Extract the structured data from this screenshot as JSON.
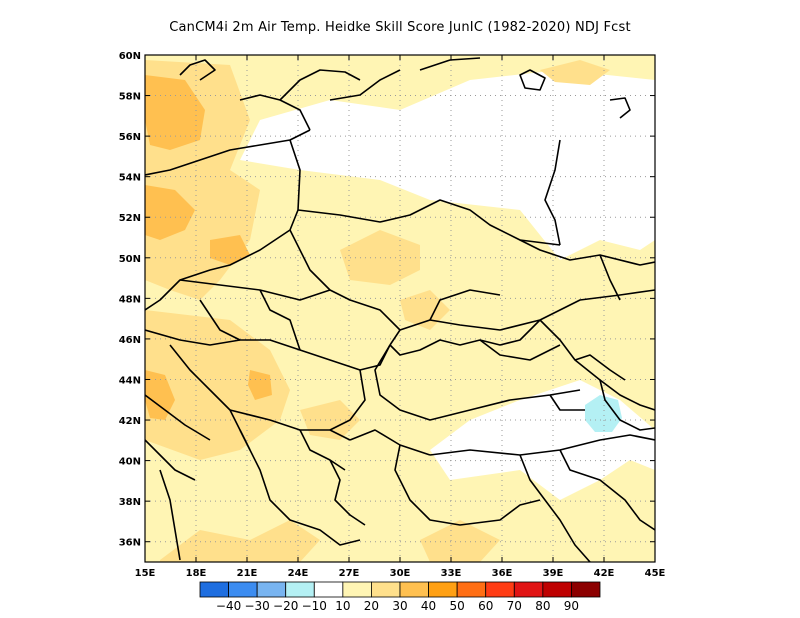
{
  "title": "CanCM4i  2m Air Temp. Heidke Skill Score JunIC (1982-2020) NDJ Fcst",
  "map": {
    "lon_range": [
      15,
      45
    ],
    "lat_range": [
      35,
      60
    ],
    "lon_ticks": [
      "15E",
      "18E",
      "21E",
      "24E",
      "27E",
      "30E",
      "33E",
      "36E",
      "39E",
      "42E",
      "45E"
    ],
    "lat_ticks": [
      "60N",
      "58N",
      "56N",
      "54N",
      "52N",
      "50N",
      "48N",
      "46N",
      "44N",
      "42N",
      "40N",
      "38N",
      "36N"
    ],
    "grid": "dotted"
  },
  "colorbar": {
    "labels": [
      "-40",
      "-30",
      "-20",
      "-10",
      "10",
      "20",
      "30",
      "40",
      "50",
      "60",
      "70",
      "80",
      "90"
    ],
    "colors": [
      "#1e6ee0",
      "#3c8cf0",
      "#78b4f0",
      "#b4f0f4",
      "#ffffff",
      "#fff5b4",
      "#ffe08c",
      "#ffc050",
      "#ffa014",
      "#ff6e14",
      "#ff3c14",
      "#e11414",
      "#be0000",
      "#8c0000"
    ]
  },
  "palette": {
    "c10": "#fff5b4",
    "c20": "#ffe08c",
    "c30": "#ffc050",
    "cneg": "#b4f0f4",
    "border": "#000000",
    "grid": "#9a9a9a"
  }
}
